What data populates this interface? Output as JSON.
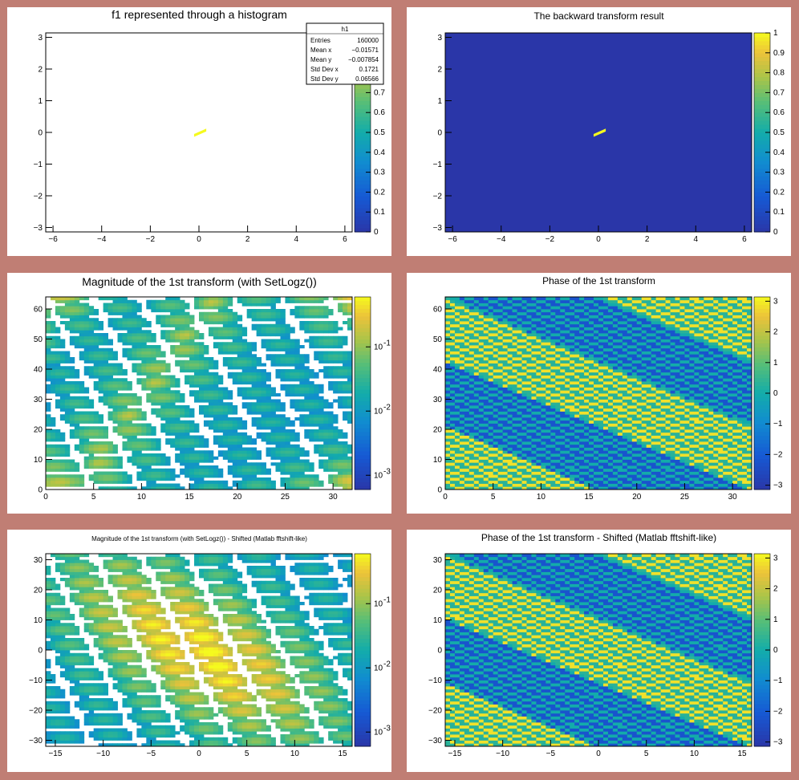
{
  "colors": {
    "background": "#c07e74",
    "pad": "#ffffff",
    "parula_low": "#2a3ea8",
    "parula_high": "#f5fa1e"
  },
  "chart_data": [
    {
      "type": "heatmap",
      "title": "f1 represented through a histogram",
      "xlim": [
        -6.3,
        6.3
      ],
      "ylim": [
        -3.14,
        3.14
      ],
      "xticks": [
        -6,
        -4,
        -2,
        0,
        2,
        4,
        6
      ],
      "yticks": [
        -3,
        -2,
        -1,
        0,
        1,
        2,
        3
      ],
      "zlim": [
        0,
        1
      ],
      "zticks": [
        0,
        0.1,
        0.2,
        0.3,
        0.4,
        0.5,
        0.6,
        0.7
      ],
      "log_z": false,
      "empty_bins_white": true,
      "feature": "bright bin cluster near origin, x from -0.2 to 0.3",
      "stats": {
        "name": "h1",
        "rows": [
          {
            "label": "Entries",
            "value": "160000"
          },
          {
            "label": "Mean x",
            "value": "−0.01571"
          },
          {
            "label": "Mean y",
            "value": "−0.007854"
          },
          {
            "label": "Std Dev x",
            "value": "0.1721"
          },
          {
            "label": "Std Dev y",
            "value": "0.06566"
          }
        ]
      }
    },
    {
      "type": "heatmap",
      "title": "The backward transform result",
      "xlim": [
        -6.3,
        6.3
      ],
      "ylim": [
        -3.14,
        3.14
      ],
      "xticks": [
        -6,
        -4,
        -2,
        0,
        2,
        4,
        6
      ],
      "yticks": [
        -3,
        -2,
        -1,
        0,
        1,
        2,
        3
      ],
      "zlim": [
        0,
        1
      ],
      "zticks": [
        0,
        0.1,
        0.2,
        0.3,
        0.4,
        0.5,
        0.6,
        0.7,
        0.8,
        0.9,
        1
      ],
      "log_z": false,
      "empty_bins_white": false,
      "feature": "bright bin cluster near origin on dark background"
    },
    {
      "type": "heatmap",
      "title": "Magnitude of the 1st transform (with SetLogz())",
      "xlim": [
        0,
        32
      ],
      "ylim": [
        0,
        64
      ],
      "xticks": [
        0,
        5,
        10,
        15,
        20,
        25,
        30
      ],
      "yticks": [
        0,
        10,
        20,
        30,
        40,
        50,
        60
      ],
      "zlim": [
        0.0006,
        0.6
      ],
      "zticks": [
        "10^-3",
        "10^-2",
        "10^-1"
      ],
      "log_z": true,
      "empty_bins_white": true,
      "feature": "lattice of rounded blobs, brighter at corners"
    },
    {
      "type": "heatmap",
      "title": "Phase of the 1st transform",
      "xlim": [
        0,
        32
      ],
      "ylim": [
        0,
        64
      ],
      "xticks": [
        0,
        5,
        10,
        15,
        20,
        25,
        30
      ],
      "yticks": [
        0,
        10,
        20,
        30,
        40,
        50,
        60
      ],
      "zlim": [
        -3.14,
        3.14
      ],
      "zticks": [
        -3,
        -2,
        -1,
        0,
        1,
        2,
        3
      ],
      "log_z": false,
      "empty_bins_white": false,
      "feature": "diagonal stripes descending to the right"
    },
    {
      "type": "heatmap",
      "title": "Magnitude of the 1st transform (with SetLogz()) - Shifted (Matlab fftshift-like)",
      "xlim": [
        -16,
        16
      ],
      "ylim": [
        -32,
        32
      ],
      "xticks": [
        -15,
        -10,
        -5,
        0,
        5,
        10,
        15
      ],
      "yticks": [
        -30,
        -20,
        -10,
        0,
        10,
        20,
        30
      ],
      "zlim": [
        0.0006,
        0.6
      ],
      "zticks": [
        "10^-3",
        "10^-2",
        "10^-1"
      ],
      "log_z": true,
      "empty_bins_white": true,
      "feature": "lattice of rounded blobs, brightest at centre"
    },
    {
      "type": "heatmap",
      "title": "Phase of the 1st transform - Shifted (Matlab fftshift-like)",
      "xlim": [
        -16,
        16
      ],
      "ylim": [
        -32,
        32
      ],
      "xticks": [
        -15,
        -10,
        -5,
        0,
        5,
        10,
        15
      ],
      "yticks": [
        -30,
        -20,
        -10,
        0,
        10,
        20,
        30
      ],
      "zlim": [
        -3.14,
        3.14
      ],
      "zticks": [
        -3,
        -2,
        -1,
        0,
        1,
        2,
        3
      ],
      "log_z": false,
      "empty_bins_white": false,
      "feature": "diagonal stripes descending to the right"
    }
  ]
}
